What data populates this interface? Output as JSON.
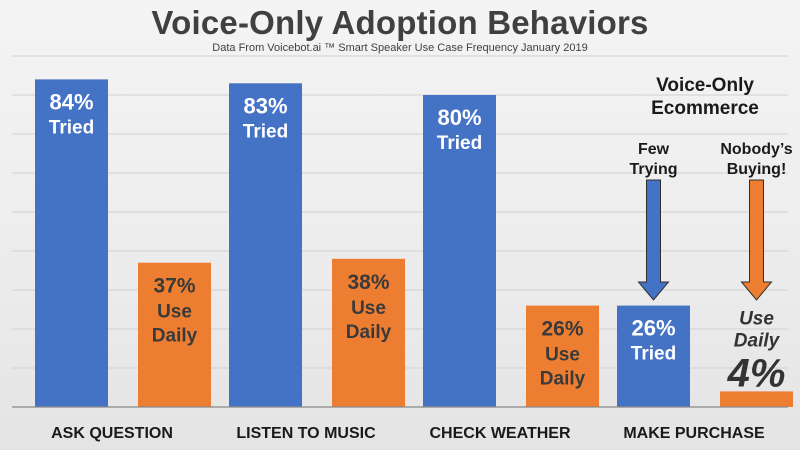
{
  "chart_data": {
    "type": "bar",
    "title": "Voice-Only Adoption Behaviors",
    "subtitle": "Data From Voicebot.ai ™  Smart Speaker Use Case Frequency January 2019",
    "xlabel": "",
    "ylabel": "",
    "ylim": [
      0,
      90
    ],
    "grid": true,
    "categories": [
      "ASK QUESTION",
      "LISTEN TO MUSIC",
      "CHECK WEATHER",
      "MAKE PURCHASE"
    ],
    "series": [
      {
        "values": [
          84,
          83,
          80,
          26
        ],
        "color": "#4472c4",
        "labels": [
          {
            "pct": "84%",
            "word": "Tried"
          },
          {
            "pct": "83%",
            "word": "Tried"
          },
          {
            "pct": "80%",
            "word": "Tried"
          },
          {
            "pct": "26%",
            "word": "Tried"
          }
        ]
      },
      {
        "values": [
          37,
          38,
          26,
          4
        ],
        "color": "#ed7d31",
        "labels": [
          {
            "pct": "37%",
            "word1": "Use",
            "word2": "Daily"
          },
          {
            "pct": "38%",
            "word1": "Use",
            "word2": "Daily"
          },
          {
            "pct": "26%",
            "word1": "Use",
            "word2": "Daily"
          },
          {
            "pct": "4%",
            "word1": "Use",
            "word2": "Daily"
          }
        ]
      }
    ],
    "annotations": {
      "heading_line1": "Voice-Only",
      "heading_line2": "Ecommerce",
      "few_line1": "Few",
      "few_line2": "Trying",
      "nobody_line1": "Nobody’s",
      "nobody_line2": "Buying!",
      "few_arrow_color": "#4472c4",
      "nobody_arrow_color": "#ed7d31"
    }
  }
}
